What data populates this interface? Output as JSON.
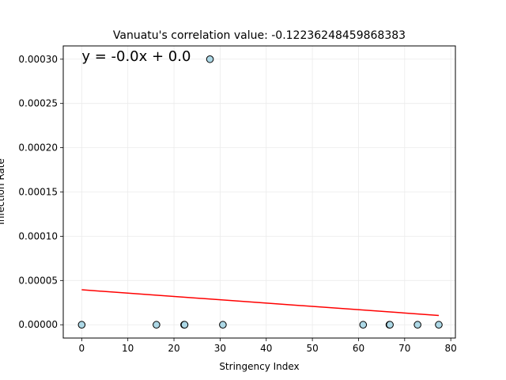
{
  "chart_data": {
    "type": "scatter",
    "title": "Vanuatu's correlation value: -0.12236248459868383",
    "xlabel": "Stringency Index",
    "ylabel": "Infection Rate",
    "xlim": [
      -4,
      81
    ],
    "ylim": [
      -1.5e-05,
      0.000315
    ],
    "x_ticks": [
      0,
      10,
      20,
      30,
      40,
      50,
      60,
      70,
      80
    ],
    "x_tick_labels": [
      "0",
      "10",
      "20",
      "30",
      "40",
      "50",
      "60",
      "70",
      "80"
    ],
    "y_ticks": [
      0,
      5e-05,
      0.0001,
      0.00015,
      0.0002,
      0.00025,
      0.0003
    ],
    "y_tick_labels": [
      "0.00000",
      "0.00005",
      "0.00010",
      "0.00015",
      "0.00020",
      "0.00025",
      "0.00030"
    ],
    "grid": true,
    "annotation": "y = -0.0x + 0.0",
    "annotation_at": [
      0,
      0.0003
    ],
    "points": [
      {
        "x": 0,
        "y": 0
      },
      {
        "x": 16.2,
        "y": 0
      },
      {
        "x": 22.2,
        "y": 0
      },
      {
        "x": 22.3,
        "y": 0
      },
      {
        "x": 27.8,
        "y": 0.0003
      },
      {
        "x": 30.6,
        "y": 0
      },
      {
        "x": 61.0,
        "y": 0
      },
      {
        "x": 66.7,
        "y": 0
      },
      {
        "x": 66.8,
        "y": 0
      },
      {
        "x": 72.8,
        "y": 0
      },
      {
        "x": 77.4,
        "y": 0
      }
    ],
    "fit_line": {
      "x": [
        0,
        77.4
      ],
      "y": [
        3.95e-05,
        1.05e-05
      ]
    },
    "colors": {
      "marker_fill": "#add8e6",
      "marker_edge": "#000000",
      "fit_line": "#ff0000",
      "grid": "#ebebeb"
    }
  }
}
